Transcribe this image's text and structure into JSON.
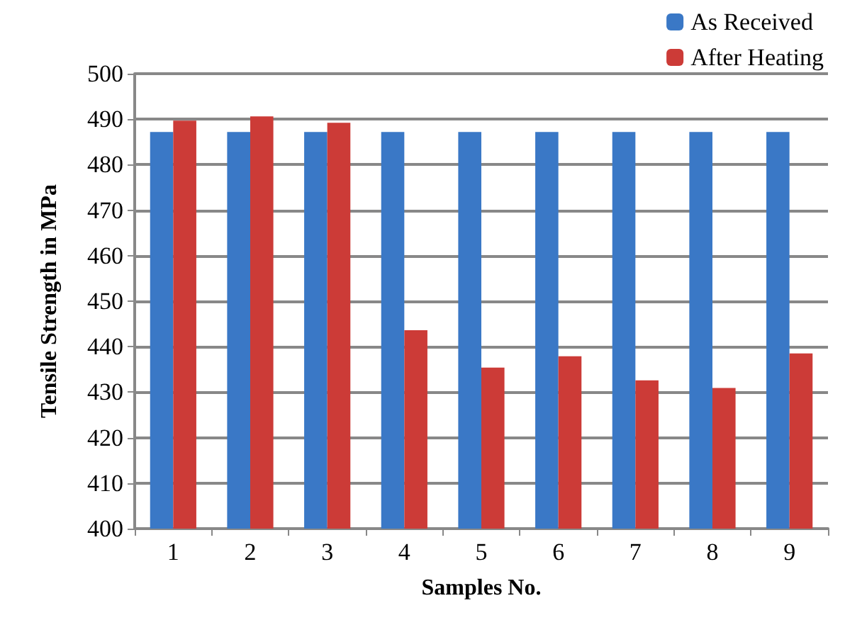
{
  "chart_data": {
    "type": "bar",
    "xlabel": "Samples No.",
    "ylabel": "Tensile Strength in MPa",
    "categories": [
      "1",
      "2",
      "3",
      "4",
      "5",
      "6",
      "7",
      "8",
      "9"
    ],
    "series": [
      {
        "name": "As Received",
        "color": "#3a78c6",
        "values": [
          487.2,
          487.2,
          487.2,
          487.2,
          487.2,
          487.2,
          487.2,
          487.2,
          487.2
        ]
      },
      {
        "name": "After Heating",
        "color": "#cc3b37",
        "values": [
          489.7,
          490.6,
          489.2,
          443.6,
          435.4,
          437.9,
          432.6,
          430.9,
          438.5
        ]
      }
    ],
    "ylim": [
      400,
      500
    ],
    "yticks": [
      400,
      410,
      420,
      430,
      440,
      450,
      460,
      470,
      480,
      490,
      500
    ],
    "grid": "y",
    "legend": "top right"
  }
}
